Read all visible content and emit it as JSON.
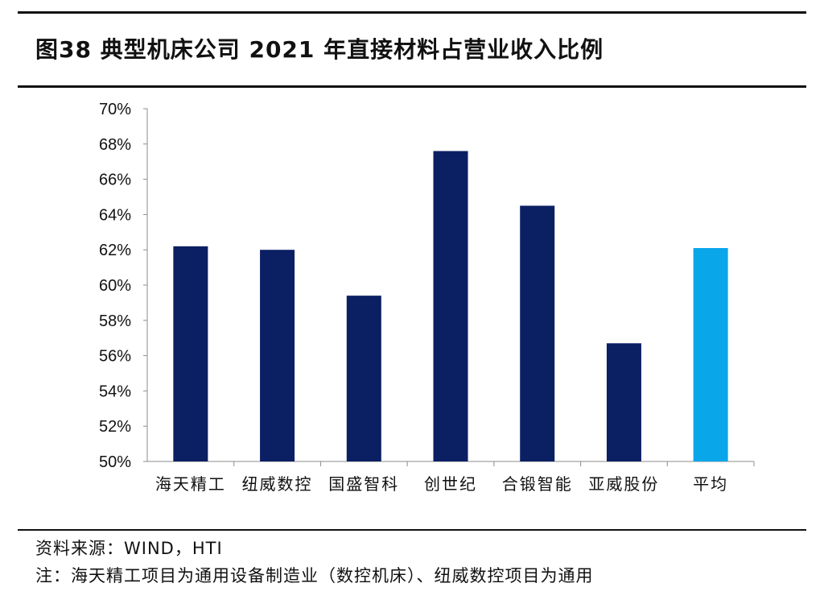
{
  "figure": {
    "title": "图38 典型机床公司 2021 年直接材料占营业收入比例"
  },
  "notes": {
    "source": "资料来源：WIND，HTI",
    "note": "注：海天精工项目为通用设备制造业（数控机床）、纽威数控项目为通用"
  },
  "colors": {
    "bar_primary": "#0b1f63",
    "bar_average": "#0aa6ea"
  },
  "chart_data": {
    "type": "bar",
    "title": "",
    "xlabel": "",
    "ylabel": "",
    "categories": [
      "海天精工",
      "纽威数控",
      "国盛智科",
      "创世纪",
      "合锻智能",
      "亚威股份",
      "平均"
    ],
    "values": [
      62.2,
      62.0,
      59.4,
      67.6,
      64.5,
      56.7,
      62.1
    ],
    "unit": "%",
    "ylim": [
      50,
      70
    ],
    "yticks": [
      "50%",
      "52%",
      "54%",
      "56%",
      "58%",
      "60%",
      "62%",
      "64%",
      "66%",
      "68%",
      "70%"
    ],
    "bar_colors": [
      "#0b1f63",
      "#0b1f63",
      "#0b1f63",
      "#0b1f63",
      "#0b1f63",
      "#0b1f63",
      "#0aa6ea"
    ],
    "grid": false,
    "legend": "none"
  }
}
